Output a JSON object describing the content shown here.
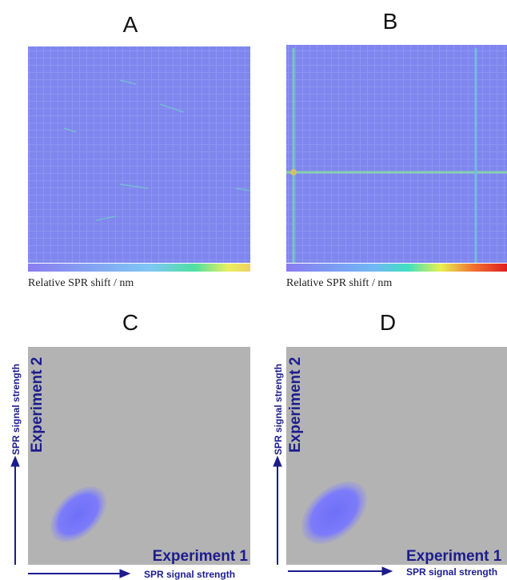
{
  "panels": [
    {
      "label": "A",
      "caption": "Relative SPR shift / nm"
    },
    {
      "label": "B",
      "caption": "Relative SPR shift / nm"
    },
    {
      "label": "C",
      "y_outer": "SPR signal strength",
      "y_inner": "Experiment 2",
      "x_inner": "Experiment 1",
      "x_outer": "SPR signal strength"
    },
    {
      "label": "D",
      "y_outer": "SPR signal strength",
      "y_inner": "Experiment 2",
      "x_inner": "Experiment 1",
      "x_outer": "SPR signal strength"
    }
  ]
}
